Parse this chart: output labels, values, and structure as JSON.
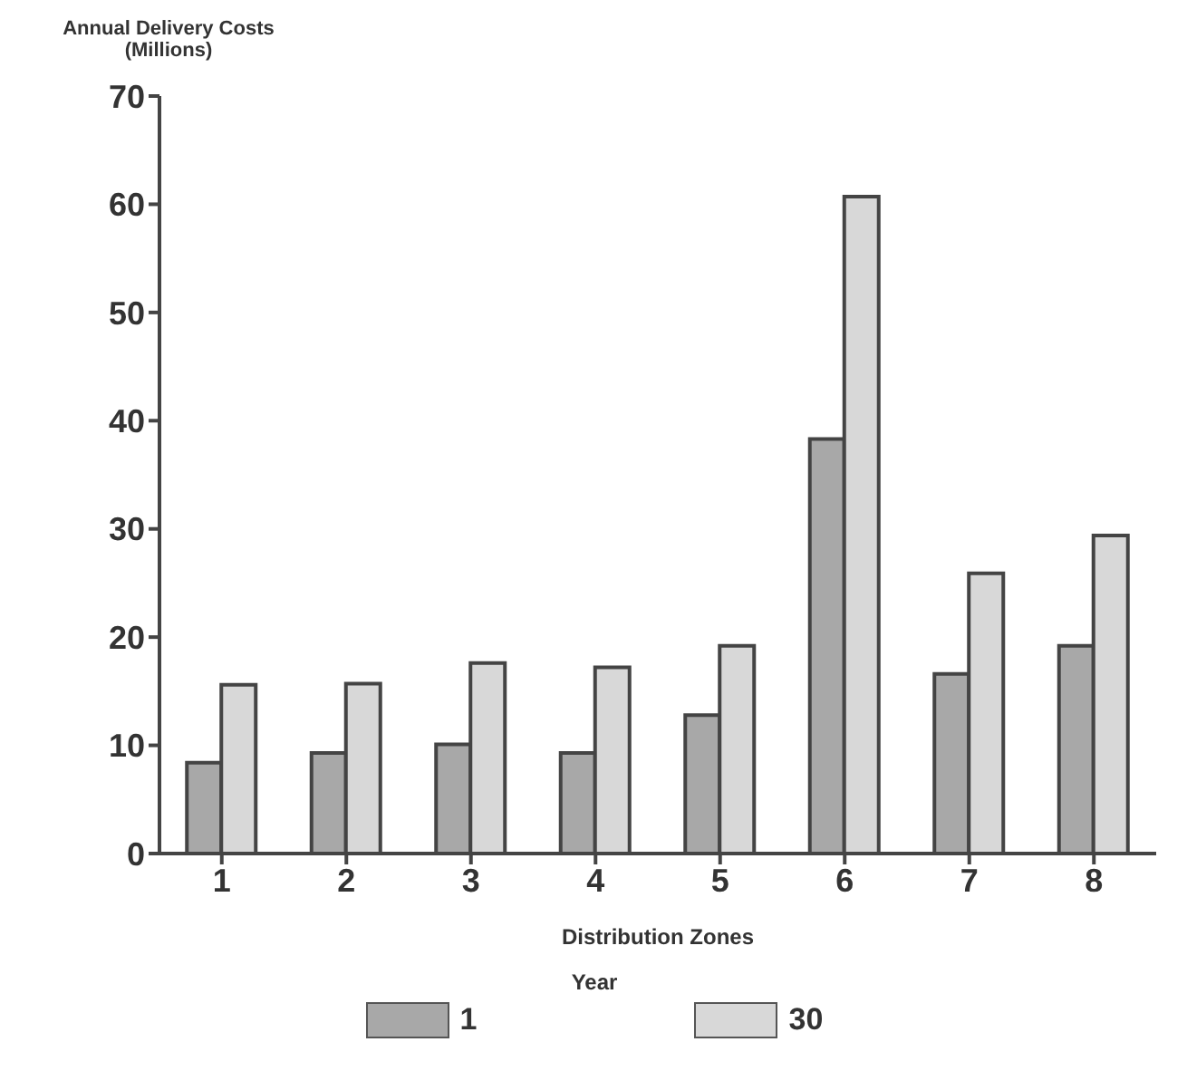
{
  "chart_data": {
    "type": "bar",
    "xlabel": "Distribution Zones",
    "ylabel": "Annual Delivery Costs\n(Millions)",
    "legend_title": "Year",
    "categories": [
      "1",
      "2",
      "3",
      "4",
      "5",
      "6",
      "7",
      "8"
    ],
    "series": [
      {
        "name": "1",
        "color": "#a8a8a8",
        "values": [
          8.4,
          9.3,
          10.1,
          9.3,
          12.8,
          38.3,
          16.6,
          19.2
        ]
      },
      {
        "name": "30",
        "color": "#d8d8d8",
        "values": [
          15.6,
          15.7,
          17.6,
          17.2,
          19.2,
          60.7,
          25.9,
          29.4
        ]
      }
    ],
    "ylim": [
      0,
      70
    ],
    "yticks": [
      0,
      10,
      20,
      30,
      40,
      50,
      60,
      70
    ],
    "grid": false,
    "legend": "bottom"
  }
}
